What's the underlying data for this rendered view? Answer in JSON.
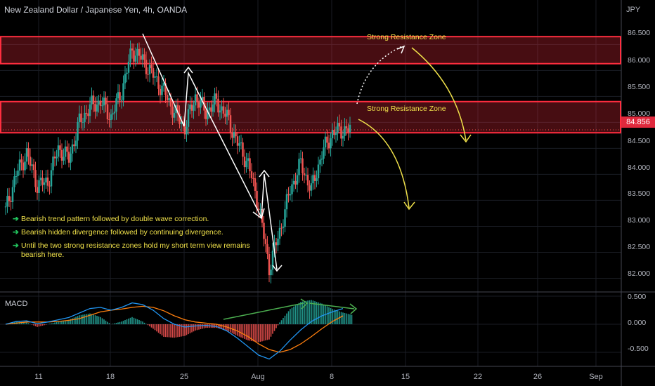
{
  "header": {
    "title": "New Zealand Dollar / Japanese Yen, 4h, OANDA",
    "currency": "JPY"
  },
  "indicator": {
    "label": "MACD"
  },
  "current_price": "84.856",
  "zones": [
    {
      "label": "Strong Resistance Zone",
      "low": 86.13,
      "high": 86.65
    },
    {
      "label": "Strong Resistance Zone",
      "low": 84.8,
      "high": 85.4
    }
  ],
  "notes": [
    "Bearish trend pattern followed by double wave correction.",
    "Bearish hidden divergence followed by continuing divergence.",
    "Until the two strong resistance zones hold my short term view remains bearish here."
  ],
  "colors": {
    "up": "#26a69a",
    "down": "#ef5350",
    "zone": "#ff2d3f",
    "annotation": "#f0e14a",
    "divergence": "#4caf50",
    "macd": "#2196f3",
    "signal": "#ff7f0e"
  },
  "chart_data": [
    {
      "type": "line",
      "title": "New Zealand Dollar / Japanese Yen, 4h, OANDA",
      "y_unit": "JPY",
      "ylim": [
        81.75,
        86.95
      ],
      "y_ticks": [
        "86.500",
        "86.000",
        "85.500",
        "85.000",
        "84.500",
        "84.000",
        "83.500",
        "83.000",
        "82.500",
        "82.000"
      ],
      "x_ticks": [
        "11",
        "18",
        "25",
        "Aug",
        "8",
        "15",
        "22",
        "26",
        "Sep"
      ],
      "x_tick_dates": [
        "Jul 11",
        "Jul 18",
        "Jul 25",
        "Aug 1",
        "Aug 8",
        "Aug 15",
        "Aug 22",
        "Aug 26",
        "Sep 1"
      ],
      "x_range": [
        "Jul 8",
        "Sep 4"
      ],
      "series": [
        {
          "x": [
            "Jul 8",
            "Jul 9",
            "Jul 10",
            "Jul 11",
            "Jul 12",
            "Jul 13",
            "Jul 14",
            "Jul 15",
            "Jul 16",
            "Jul 17",
            "Jul 18",
            "Jul 19",
            "Jul 20",
            "Jul 21",
            "Jul 22",
            "Jul 23",
            "Jul 24",
            "Jul 25",
            "Jul 26",
            "Jul 27",
            "Jul 28",
            "Jul 29",
            "Jul 30",
            "Jul 31",
            "Aug 1",
            "Aug 2",
            "Aug 3",
            "Aug 4",
            "Aug 5",
            "Aug 6",
            "Aug 7",
            "Aug 8",
            "Aug 9",
            "Aug 10"
          ],
          "values": [
            83.3,
            84.0,
            84.4,
            83.8,
            83.85,
            84.5,
            84.3,
            85.0,
            85.3,
            85.4,
            85.1,
            85.6,
            86.4,
            86.2,
            85.9,
            85.6,
            85.2,
            84.9,
            85.5,
            85.2,
            85.4,
            85.1,
            84.6,
            84.2,
            83.4,
            82.2,
            82.9,
            83.7,
            84.2,
            83.7,
            84.4,
            84.8,
            84.856,
            84.86
          ]
        }
      ],
      "grid": true
    },
    {
      "type": "line",
      "title": "MACD",
      "ylim": [
        -0.75,
        0.55
      ],
      "y_ticks": [
        "0.500",
        "0.000",
        "-0.500"
      ],
      "series": [
        {
          "name": "MACD",
          "values": [
            0.0,
            0.05,
            0.06,
            0.01,
            0.04,
            0.08,
            0.12,
            0.2,
            0.28,
            0.3,
            0.25,
            0.3,
            0.38,
            0.35,
            0.25,
            0.1,
            0.0,
            -0.05,
            -0.03,
            -0.02,
            -0.04,
            -0.12,
            -0.25,
            -0.4,
            -0.55,
            -0.62,
            -0.48,
            -0.28,
            -0.1,
            0.05,
            0.15,
            0.22,
            0.28,
            0.32
          ]
        },
        {
          "name": "Signal",
          "values": [
            0.0,
            0.02,
            0.04,
            0.04,
            0.04,
            0.05,
            0.07,
            0.1,
            0.16,
            0.22,
            0.25,
            0.27,
            0.3,
            0.32,
            0.3,
            0.24,
            0.15,
            0.08,
            0.04,
            0.02,
            0.0,
            -0.05,
            -0.12,
            -0.22,
            -0.35,
            -0.45,
            -0.5,
            -0.45,
            -0.35,
            -0.22,
            -0.08,
            0.05,
            0.15,
            0.22
          ]
        }
      ]
    }
  ]
}
